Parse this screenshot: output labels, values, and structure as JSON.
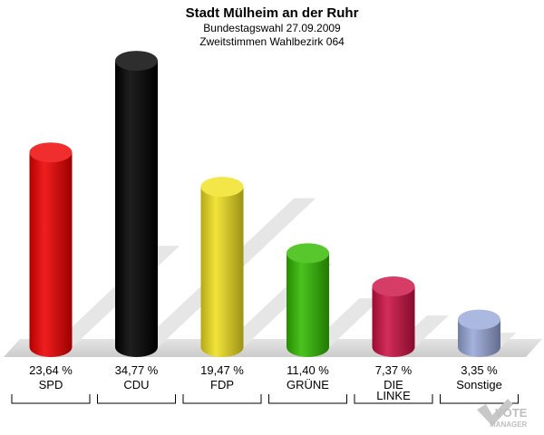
{
  "chart_data": {
    "type": "bar",
    "title": "Stadt Mülheim an der Ruhr",
    "subtitle": "Bundestagswahl 27.09.2009",
    "subtitle2": "Zweitstimmen Wahlbezirk 064",
    "categories": [
      "SPD",
      "CDU",
      "FDP",
      "GRÜNE",
      "DIE LINKE",
      "Sonstige"
    ],
    "values": [
      23.64,
      34.77,
      19.47,
      11.4,
      7.37,
      3.35
    ],
    "value_labels": [
      "23,64 %",
      "34,77 %",
      "19,47 %",
      "11,40 %",
      "7,37 %",
      "3,35 %"
    ],
    "colors": [
      "#ee0000",
      "#000000",
      "#f0e020",
      "#33bb00",
      "#cc1144",
      "#99a8d8"
    ],
    "ylim": [
      0,
      35
    ],
    "grid": false,
    "legend": "none"
  },
  "logo": {
    "line1": "VOTE",
    "line2": "MANAGER"
  }
}
